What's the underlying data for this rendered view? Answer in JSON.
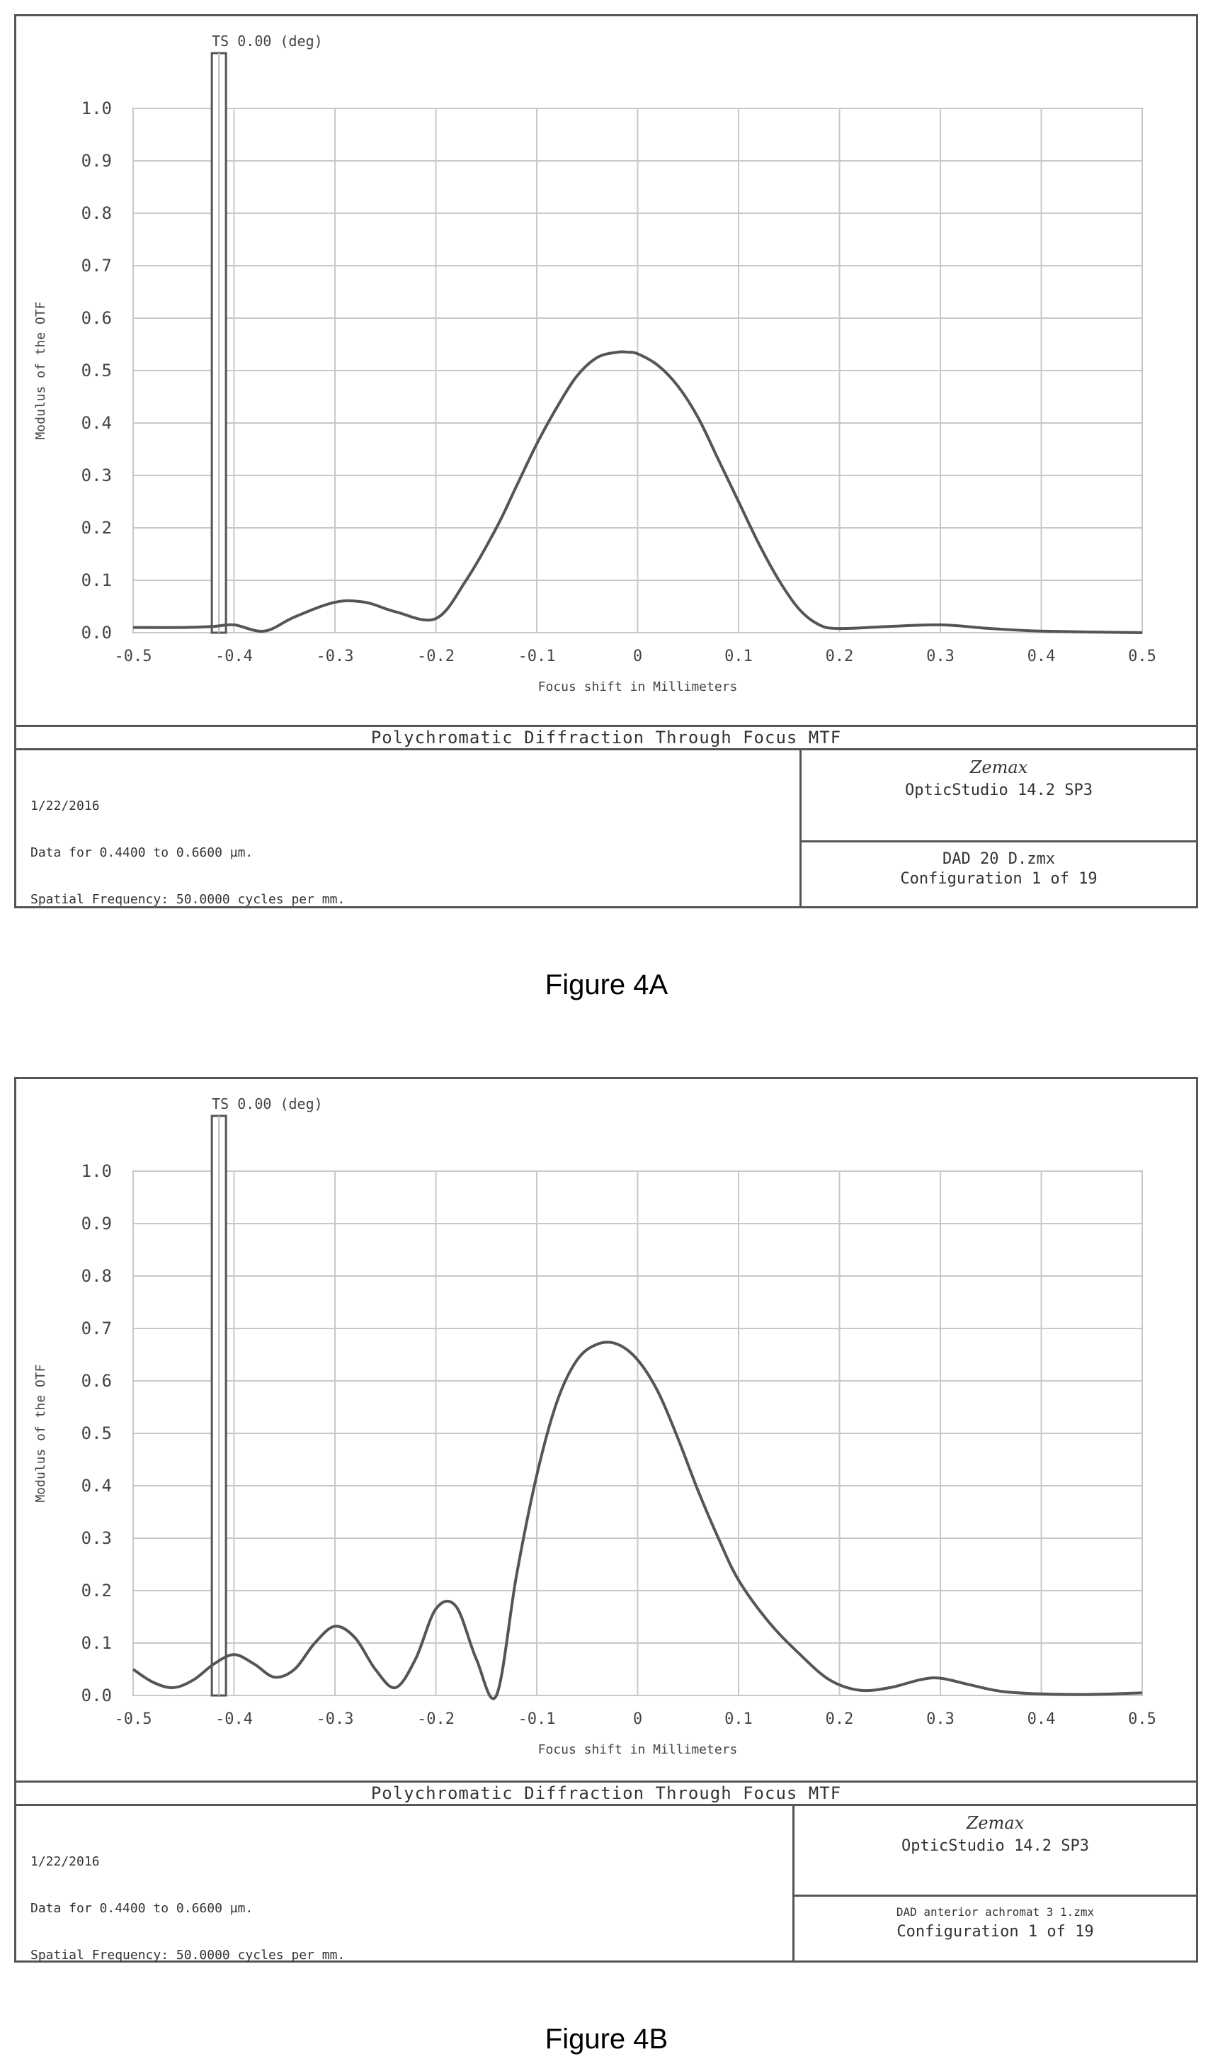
{
  "figures": [
    {
      "caption": "Figure 4A",
      "field_label": "TS 0.00 (deg)",
      "plot_title": "Polychromatic Diffraction Through Focus MTF",
      "info_lines": [
        "1/22/2016",
        "Data for 0.4400 to 0.6600 µm.",
        "Spatial Frequency: 50.0000 cycles per mm."
      ],
      "brand": "Zemax",
      "version": "OpticStudio 14.2 SP3",
      "file_name": "DAD 20 D.zmx",
      "configuration": "Configuration 1 of 19"
    },
    {
      "caption": "Figure 4B",
      "field_label": "TS 0.00 (deg)",
      "plot_title": "Polychromatic Diffraction Through Focus MTF",
      "info_lines": [
        "1/22/2016",
        "Data for 0.4400 to 0.6600 µm.",
        "Spatial Frequency: 50.0000 cycles per mm."
      ],
      "brand": "Zemax",
      "version": "OpticStudio 14.2 SP3",
      "file_name": "DAD anterior achromat 3 1.zmx",
      "configuration": "Configuration 1 of 19"
    }
  ],
  "chart_data": [
    {
      "type": "line",
      "title": "Polychromatic Diffraction Through Focus MTF",
      "xlabel": "Focus shift in Millimeters",
      "ylabel": "Modulus of the OTF",
      "xlim": [
        -0.5,
        0.5
      ],
      "ylim": [
        0,
        1
      ],
      "xticks": [
        "-0.5",
        "-0.4",
        "-0.3",
        "-0.2",
        "-0.1",
        "0",
        "0.1",
        "0.2",
        "0.3",
        "0.4",
        "0.5"
      ],
      "yticks": [
        "0.0",
        "0.1",
        "0.2",
        "0.3",
        "0.4",
        "0.5",
        "0.6",
        "0.7",
        "0.8",
        "0.9",
        "1.0"
      ],
      "grid": true,
      "marker_x": -0.415,
      "colors": {
        "curve": "#555555",
        "grid": "#c8c8c8",
        "marker": "#555555"
      },
      "series": [
        {
          "x": [
            -0.5,
            -0.45,
            -0.42,
            -0.4,
            -0.37,
            -0.34,
            -0.3,
            -0.27,
            -0.24,
            -0.2,
            -0.17,
            -0.14,
            -0.12,
            -0.1,
            -0.08,
            -0.06,
            -0.04,
            -0.02,
            -0.01,
            0.0,
            0.02,
            0.04,
            0.06,
            0.08,
            0.1,
            0.12,
            0.14,
            0.16,
            0.18,
            0.2,
            0.25,
            0.3,
            0.35,
            0.4,
            0.5
          ],
          "y": [
            0.01,
            0.01,
            0.012,
            0.015,
            0.003,
            0.03,
            0.058,
            0.058,
            0.04,
            0.027,
            0.1,
            0.2,
            0.28,
            0.36,
            0.43,
            0.49,
            0.525,
            0.535,
            0.535,
            0.532,
            0.51,
            0.47,
            0.41,
            0.33,
            0.25,
            0.17,
            0.1,
            0.045,
            0.015,
            0.008,
            0.012,
            0.015,
            0.008,
            0.003,
            0.0
          ]
        }
      ]
    },
    {
      "type": "line",
      "title": "Polychromatic Diffraction Through Focus MTF",
      "xlabel": "Focus shift in Millimeters",
      "ylabel": "Modulus of the OTF",
      "xlim": [
        -0.5,
        0.5
      ],
      "ylim": [
        0,
        1
      ],
      "xticks": [
        "-0.5",
        "-0.4",
        "-0.3",
        "-0.2",
        "-0.1",
        "0",
        "0.1",
        "0.2",
        "0.3",
        "0.4",
        "0.5"
      ],
      "yticks": [
        "0.0",
        "0.1",
        "0.2",
        "0.3",
        "0.4",
        "0.5",
        "0.6",
        "0.7",
        "0.8",
        "0.9",
        "1.0"
      ],
      "grid": true,
      "marker_x": -0.415,
      "colors": {
        "curve": "#555555",
        "grid": "#c8c8c8",
        "marker": "#555555"
      },
      "series": [
        {
          "x": [
            -0.5,
            -0.48,
            -0.46,
            -0.44,
            -0.42,
            -0.4,
            -0.38,
            -0.36,
            -0.34,
            -0.32,
            -0.3,
            -0.28,
            -0.26,
            -0.24,
            -0.22,
            -0.2,
            -0.18,
            -0.16,
            -0.14,
            -0.12,
            -0.1,
            -0.08,
            -0.06,
            -0.04,
            -0.02,
            0.0,
            0.02,
            0.04,
            0.06,
            0.08,
            0.1,
            0.13,
            0.16,
            0.19,
            0.22,
            0.25,
            0.28,
            0.3,
            0.33,
            0.36,
            0.4,
            0.45,
            0.5
          ],
          "y": [
            0.05,
            0.025,
            0.015,
            0.03,
            0.06,
            0.078,
            0.06,
            0.035,
            0.05,
            0.1,
            0.132,
            0.11,
            0.05,
            0.015,
            0.07,
            0.165,
            0.17,
            0.07,
            0.0,
            0.23,
            0.42,
            0.56,
            0.64,
            0.67,
            0.67,
            0.64,
            0.58,
            0.49,
            0.39,
            0.3,
            0.22,
            0.14,
            0.08,
            0.03,
            0.01,
            0.015,
            0.03,
            0.033,
            0.02,
            0.008,
            0.003,
            0.002,
            0.005
          ]
        }
      ]
    }
  ]
}
